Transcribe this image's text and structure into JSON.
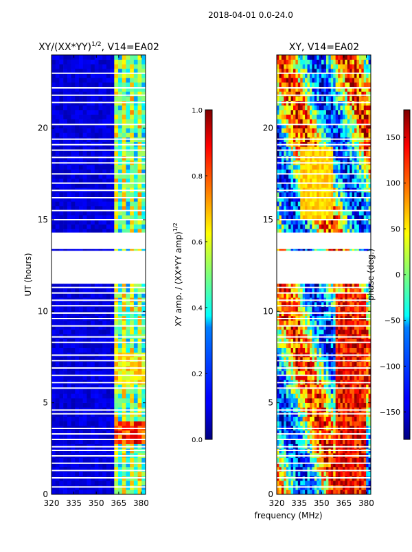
{
  "figure": {
    "suptitle": "2018-04-01 0.0-24.0",
    "shared_xlabel": "frequency (MHz)"
  },
  "chart_data": [
    {
      "type": "heatmap",
      "title_main": "XY/(XX*YY)",
      "title_sup": "1/2",
      "title_rest": ", V14=EA02",
      "xlabel": "",
      "ylabel": "UT (hours)",
      "xlim": [
        320,
        383
      ],
      "ylim": [
        0,
        24
      ],
      "xticks": [
        320,
        335,
        350,
        365,
        380
      ],
      "yticks": [
        0,
        5,
        10,
        15,
        20
      ],
      "data_description": "normalized XY amplitude vs frequency and UT; low (~0.05) below 362 MHz, bright channels (0.3-0.9) above 362 MHz",
      "colorbar": {
        "label_main": "XY amp. / (XX*YY amp)",
        "label_sup": "1/2",
        "range": [
          0.0,
          1.0
        ],
        "ticks": [
          "0.0",
          "0.2",
          "0.4",
          "0.6",
          "0.8",
          "1.0"
        ]
      }
    },
    {
      "type": "heatmap",
      "title": "XY, V14=EA02",
      "xlabel": "",
      "ylabel": "",
      "xlim": [
        320,
        383
      ],
      "ylim": [
        0,
        24
      ],
      "xticks": [
        320,
        335,
        350,
        365,
        380
      ],
      "yticks": [
        0,
        5,
        10,
        15,
        20
      ],
      "data_description": "XY phase vs frequency and UT, values spanning -180 to 180 degrees",
      "colorbar": {
        "label": "phase (deg.)",
        "range": [
          -180,
          180
        ],
        "ticks": [
          "−150",
          "−100",
          "−50",
          "0",
          "50",
          "100",
          "150"
        ]
      }
    }
  ]
}
